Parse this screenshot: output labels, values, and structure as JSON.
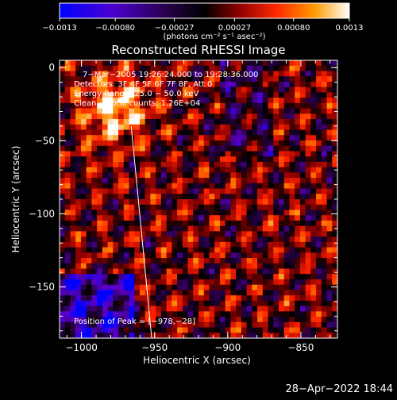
{
  "chart_data": {
    "type": "heatmap",
    "title": "Reconstructed RHESSI Image",
    "xlabel": "Heliocentric X (arcsec)",
    "ylabel": "Heliocentric Y (arcsec)",
    "xlim": [
      -1015,
      -825
    ],
    "ylim": [
      -185,
      5
    ],
    "x_ticks": [
      -1000,
      -950,
      -900,
      -850
    ],
    "y_ticks": [
      0,
      -50,
      -100,
      -150
    ],
    "x_tick_labels": [
      "−1000",
      "−950",
      "−900",
      "−850"
    ],
    "y_tick_labels": [
      "0",
      "−50",
      "−100",
      "−150"
    ],
    "colorbar": {
      "min": -0.0013,
      "max": 0.0013,
      "ticks": [
        -0.0013,
        -0.0008,
        -0.00027,
        0.00027,
        0.0008,
        0.0013
      ],
      "tick_labels": [
        "−0.0013",
        "−0.00080",
        "−0.00027",
        "0.00027",
        "0.00080",
        "0.0013"
      ],
      "unit_label": "(photons cm⁻² s⁻¹ asec⁻²)"
    },
    "annotations": [
      "7−Mar−2005 19:26:24.000 to 19:28:36.000",
      "Detectors: 3F 4F 5F 6F 7F 8F, Att 0",
      "Energy Range: 25.0 − 50.0 keV",
      "Clean − Total counts: 1.26E+04"
    ],
    "peak_label": "Position of Peak = [−978,−28]",
    "peak_position": [
      -978,
      -28
    ],
    "limb_line": [
      [
        -966,
        -40
      ],
      [
        -952,
        -185
      ]
    ]
  },
  "footer": {
    "timestamp": "28−Apr−2022 18:44"
  },
  "colors": {
    "background": "#000000",
    "colorbar_stops": [
      "#0000ff",
      "#5a00c8",
      "#2a004a",
      "#000000",
      "#8a0000",
      "#ff2000",
      "#ff9000",
      "#ffffff"
    ]
  }
}
